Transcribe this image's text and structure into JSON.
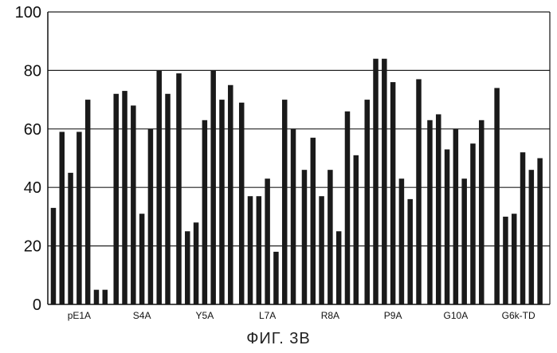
{
  "figure": {
    "caption": "ФИГ. 3B"
  },
  "chart_data": {
    "type": "bar",
    "title": "",
    "xlabel": "",
    "ylabel": "",
    "ylim": [
      0,
      100
    ],
    "yticks": [
      "0",
      "20",
      "40",
      "60",
      "80",
      "100"
    ],
    "grid": "horizontal",
    "bar_color": "#1a1a1a",
    "categories": [
      "pE1A",
      "S4A",
      "Y5A",
      "L7A",
      "R8A",
      "P9A",
      "G10A",
      "G6k-TD"
    ],
    "series_values_by_category": [
      [
        33,
        59,
        45,
        59,
        70,
        5,
        5
      ],
      [
        72,
        73,
        68,
        31,
        60,
        80,
        72
      ],
      [
        79,
        25,
        28,
        63,
        80,
        70,
        75
      ],
      [
        69,
        37,
        37,
        43,
        18,
        70,
        60
      ],
      [
        46,
        57,
        37,
        46,
        25,
        66,
        51
      ],
      [
        70,
        84,
        84,
        76,
        43,
        36,
        77
      ],
      [
        63,
        65,
        53,
        60,
        43,
        55,
        63
      ],
      [
        74,
        30,
        31,
        52,
        46,
        50
      ]
    ]
  }
}
